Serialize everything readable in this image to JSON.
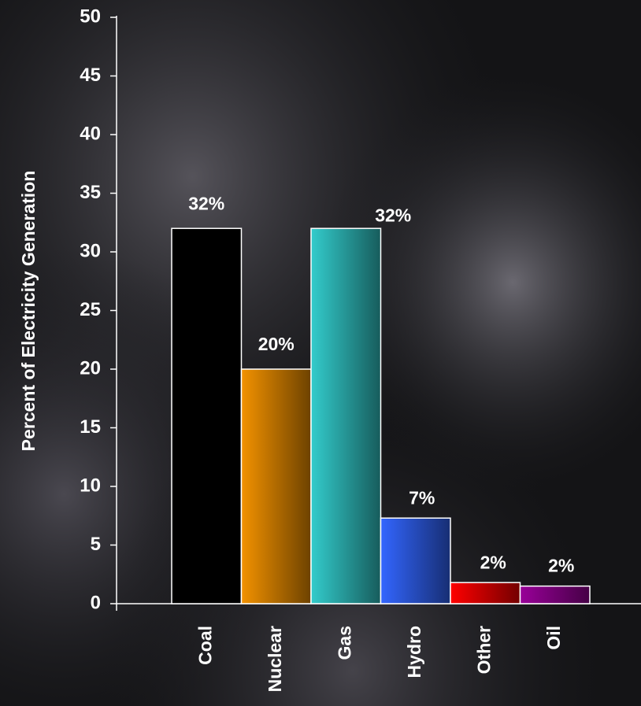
{
  "chart_data": {
    "type": "bar",
    "y_label": "Percent of Electricity Generation",
    "categories": [
      "Coal",
      "Nuclear",
      "Gas",
      "Hydro",
      "Other",
      "Oil"
    ],
    "values": [
      32,
      20,
      32,
      7.3,
      1.8,
      1.5
    ],
    "value_labels": [
      "32%",
      "20%",
      "32%",
      "7%",
      "2%",
      "2%"
    ],
    "colors": [
      "#000000",
      "#f39200",
      "#33cccc",
      "#3366ff",
      "#ff0000",
      "#990099"
    ],
    "ylim": [
      0,
      50
    ],
    "yticks": [
      0,
      5,
      10,
      15,
      20,
      25,
      30,
      35,
      40,
      45,
      50
    ],
    "grid": false
  }
}
